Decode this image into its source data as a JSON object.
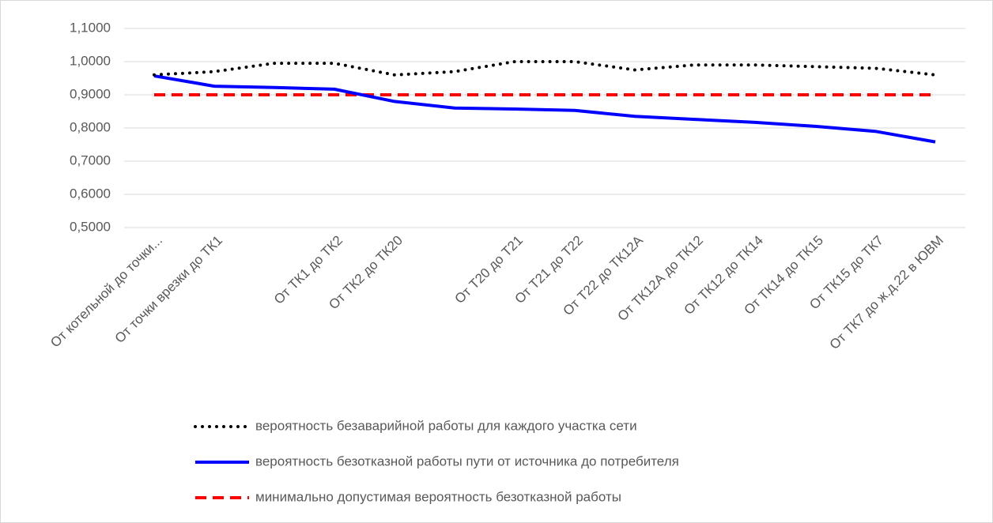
{
  "chart_data": {
    "type": "line",
    "categories": [
      "От котельной до точки...",
      "От точки врезки до ТК1",
      null,
      "От ТК1 до ТК2",
      "От ТК2 до ТК20",
      null,
      "От Т20 до Т21",
      "От Т21 до Т22",
      "От Т22 до ТК12А",
      "От ТК12А до ТК12",
      "От ТК12 до ТК14",
      "От ТК14 до ТК15",
      "От ТК15 до ТК7",
      "От ТК7 до ж.д.22 в ЮВМ"
    ],
    "series": [
      {
        "name": "вероятность безаварийной работы для каждого участка сети",
        "color": "#000000",
        "style": "dotted",
        "values": [
          0.96,
          0.97,
          0.995,
          0.995,
          0.96,
          0.97,
          1.0,
          1.0,
          0.975,
          0.99,
          0.99,
          0.985,
          0.98,
          0.96
        ]
      },
      {
        "name": "вероятность безотказной работы пути от источника до потребителя",
        "color": "#0000ff",
        "style": "solid",
        "values": [
          0.957,
          0.926,
          0.922,
          0.917,
          0.88,
          0.86,
          0.857,
          0.853,
          0.835,
          0.826,
          0.817,
          0.805,
          0.79,
          0.758
        ]
      },
      {
        "name": "минимально допустимая вероятность безотказной работы",
        "color": "#ff0000",
        "style": "dashed",
        "values": [
          0.9,
          0.9,
          0.9,
          0.9,
          0.9,
          0.9,
          0.9,
          0.9,
          0.9,
          0.9,
          0.9,
          0.9,
          0.9,
          0.9
        ]
      }
    ],
    "ylim": [
      0.5,
      1.1
    ],
    "yticks": [
      {
        "value": 0.5,
        "label": "0,5000"
      },
      {
        "value": 0.6,
        "label": "0,6000"
      },
      {
        "value": 0.7,
        "label": "0,7000"
      },
      {
        "value": 0.8,
        "label": "0,8000"
      },
      {
        "value": 0.9,
        "label": "0,9000"
      },
      {
        "value": 1.0,
        "label": "1,0000"
      },
      {
        "value": 1.1,
        "label": "1,1000"
      }
    ],
    "grid": true,
    "legend": "bottom"
  }
}
